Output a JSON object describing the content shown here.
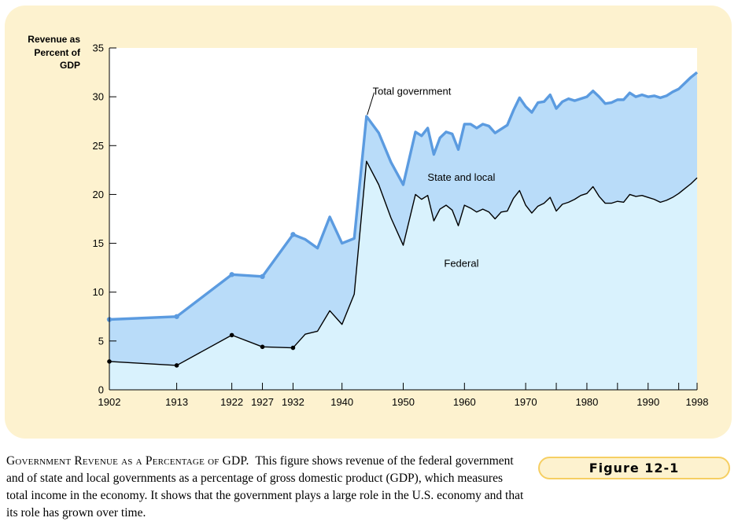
{
  "colors": {
    "panel_bg": "#fdf2cf",
    "plot_bg": "#ffffff",
    "federal_fill": "#d9f2fd",
    "state_local_fill": "#b9dcf9",
    "total_line": "#5b9be0",
    "federal_line": "#000000",
    "badge_border": "#f6cf63"
  },
  "chart_data": {
    "type": "area",
    "ylabel": "Revenue as Percent of GDP",
    "ylim": [
      0,
      35
    ],
    "yticks": [
      0,
      5,
      10,
      15,
      20,
      25,
      30,
      35
    ],
    "xlim": [
      1902,
      1998
    ],
    "x_tick_labels": [
      "1902",
      "1913",
      "1922",
      "1927",
      "1932",
      "1940",
      "1950",
      "1960",
      "1970",
      "1980",
      "1990",
      "1998"
    ],
    "x_minor_ticks": [
      1902,
      1913,
      1922,
      1927,
      1932,
      1940,
      1950,
      1960,
      1970,
      1975,
      1980,
      1985,
      1990,
      1995,
      1998
    ],
    "grid": false,
    "marked_points_years": [
      1902,
      1913,
      1922,
      1927,
      1932
    ],
    "series": [
      {
        "name": "Total government",
        "x": [
          1902,
          1913,
          1922,
          1927,
          1932,
          1934,
          1936,
          1938,
          1940,
          1942,
          1944,
          1946,
          1948,
          1950,
          1952,
          1953,
          1954,
          1955,
          1956,
          1957,
          1958,
          1959,
          1960,
          1961,
          1962,
          1963,
          1964,
          1965,
          1966,
          1967,
          1968,
          1969,
          1970,
          1971,
          1972,
          1973,
          1974,
          1975,
          1976,
          1977,
          1978,
          1979,
          1980,
          1981,
          1982,
          1983,
          1984,
          1985,
          1986,
          1987,
          1988,
          1989,
          1990,
          1991,
          1992,
          1993,
          1994,
          1995,
          1996,
          1997,
          1998
        ],
        "values": [
          7.2,
          7.5,
          11.8,
          11.6,
          15.9,
          15.4,
          14.5,
          17.7,
          15.0,
          15.5,
          28.0,
          26.3,
          23.3,
          21.0,
          26.4,
          26.0,
          26.8,
          24.1,
          25.8,
          26.4,
          26.2,
          24.6,
          27.2,
          27.2,
          26.8,
          27.2,
          27.0,
          26.3,
          26.7,
          27.1,
          28.6,
          29.9,
          29.0,
          28.4,
          29.4,
          29.5,
          30.2,
          28.8,
          29.5,
          29.8,
          29.6,
          29.8,
          30.0,
          30.6,
          30.0,
          29.3,
          29.4,
          29.7,
          29.7,
          30.4,
          30.0,
          30.2,
          30.0,
          30.1,
          29.9,
          30.1,
          30.5,
          30.8,
          31.4,
          32.0,
          32.5
        ]
      },
      {
        "name": "Federal",
        "x": [
          1902,
          1913,
          1922,
          1927,
          1932,
          1934,
          1936,
          1938,
          1940,
          1942,
          1944,
          1946,
          1948,
          1950,
          1952,
          1953,
          1954,
          1955,
          1956,
          1957,
          1958,
          1959,
          1960,
          1961,
          1962,
          1963,
          1964,
          1965,
          1966,
          1967,
          1968,
          1969,
          1970,
          1971,
          1972,
          1973,
          1974,
          1975,
          1976,
          1977,
          1978,
          1979,
          1980,
          1981,
          1982,
          1983,
          1984,
          1985,
          1986,
          1987,
          1988,
          1989,
          1990,
          1991,
          1992,
          1993,
          1994,
          1995,
          1996,
          1997,
          1998
        ],
        "values": [
          2.9,
          2.5,
          5.6,
          4.4,
          4.3,
          5.7,
          6.0,
          8.1,
          6.7,
          9.8,
          23.4,
          21.0,
          17.6,
          14.8,
          20.0,
          19.5,
          19.9,
          17.3,
          18.5,
          18.9,
          18.4,
          16.8,
          18.9,
          18.6,
          18.2,
          18.5,
          18.2,
          17.5,
          18.2,
          18.3,
          19.6,
          20.4,
          18.9,
          18.1,
          18.8,
          19.1,
          19.7,
          18.3,
          19.0,
          19.2,
          19.5,
          19.9,
          20.1,
          20.8,
          19.8,
          19.1,
          19.1,
          19.3,
          19.2,
          20.0,
          19.8,
          19.9,
          19.7,
          19.5,
          19.2,
          19.4,
          19.7,
          20.1,
          20.6,
          21.1,
          21.7
        ]
      }
    ],
    "annotations": [
      {
        "text": "Total government",
        "year": 1945,
        "value": 30.6
      },
      {
        "text": "State and local",
        "year": 1959.5,
        "value": 21.8
      },
      {
        "text": "Federal",
        "year": 1959.5,
        "value": 13.0
      }
    ]
  },
  "ylabel_lines": [
    "Revenue as",
    "Percent of",
    "GDP"
  ],
  "caption": {
    "title": "Government Revenue as a Percentage of GDP.",
    "body": "This figure shows revenue of the federal government and of state and local governments as a percentage of gross domestic product (GDP), which measures total income in the economy. It shows that the government plays a large role in the U.S. economy and that its role has grown over time."
  },
  "figure_label": "Figure 12-1"
}
